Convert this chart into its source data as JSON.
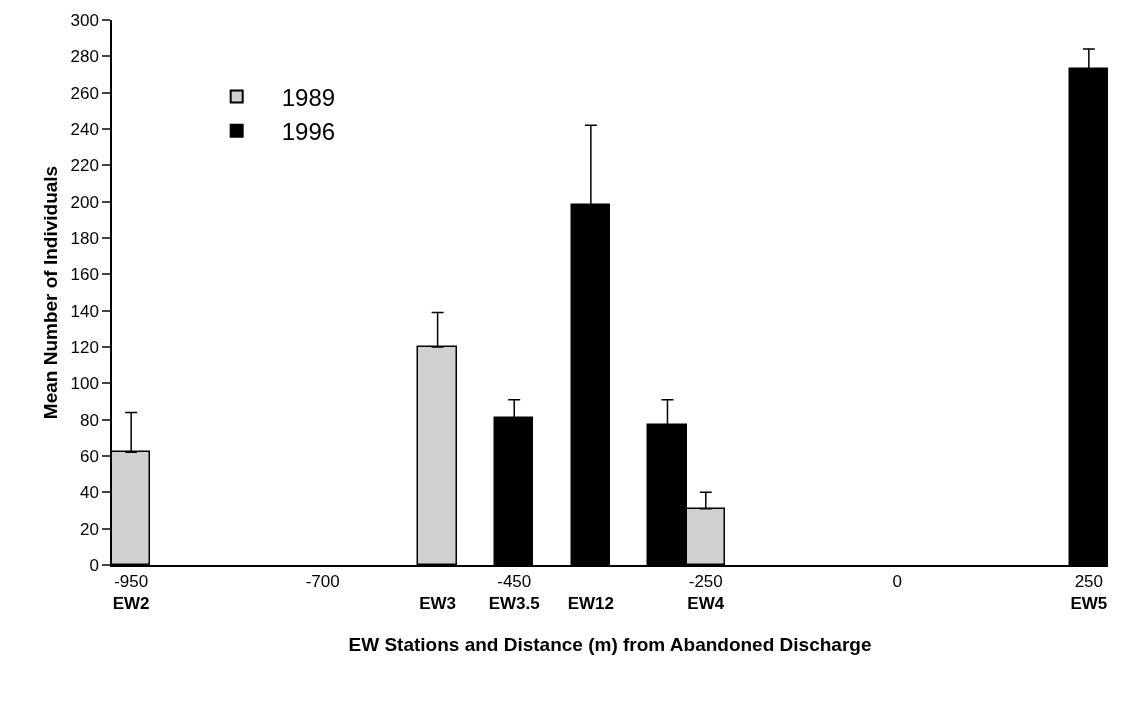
{
  "chart_data": {
    "type": "bar",
    "xlabel": "EW Stations and Distance (m) from Abandoned Discharge",
    "ylabel": "Mean Number of Individuals",
    "categories": [
      "-950\nEW2",
      null,
      null,
      null,
      null,
      "-700",
      null,
      null,
      "\nEW3",
      null,
      "-450\nEW3.5",
      null,
      "\nEW12",
      null,
      null,
      "-250\nEW4",
      null,
      null,
      null,
      null,
      "0",
      null,
      null,
      null,
      null,
      "250\nEW5"
    ],
    "series": [
      {
        "name": "1989",
        "color": "#d0d0d0",
        "values": [
          62,
          null,
          null,
          null,
          null,
          null,
          null,
          null,
          120,
          null,
          null,
          null,
          null,
          null,
          null,
          31,
          null,
          null,
          null,
          null,
          null,
          null,
          null,
          null,
          null,
          null
        ],
        "errors": [
          22,
          null,
          null,
          null,
          null,
          null,
          null,
          null,
          19,
          null,
          null,
          null,
          null,
          null,
          null,
          9,
          null,
          null,
          null,
          null,
          null,
          null,
          null,
          null,
          null,
          null
        ]
      },
      {
        "name": "1996",
        "color": "#000000",
        "values": [
          null,
          null,
          null,
          null,
          null,
          null,
          null,
          null,
          null,
          null,
          81,
          null,
          198,
          null,
          77,
          null,
          null,
          null,
          null,
          null,
          null,
          null,
          null,
          null,
          null,
          273
        ],
        "errors": [
          null,
          null,
          null,
          null,
          null,
          null,
          null,
          null,
          null,
          null,
          10,
          null,
          44,
          null,
          14,
          null,
          null,
          null,
          null,
          null,
          null,
          null,
          null,
          null,
          null,
          11
        ]
      }
    ],
    "ylim": [
      0,
      300
    ],
    "yticks": [
      0,
      20,
      40,
      60,
      80,
      100,
      120,
      140,
      160,
      180,
      200,
      220,
      240,
      260,
      280,
      300
    ],
    "legend": "top left"
  }
}
